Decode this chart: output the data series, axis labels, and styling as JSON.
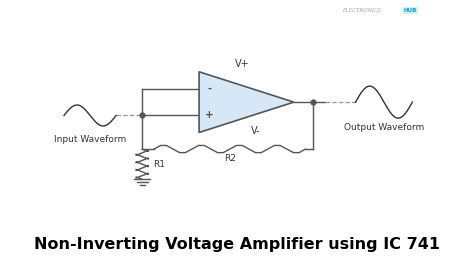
{
  "title": "Non-Inverting Voltage Amplifier using IC 741",
  "title_fontsize": 11.5,
  "bg_color": "#ffffff",
  "circuit_color": "#333333",
  "opamp_fill": "#d6e8f7",
  "opamp_edge": "#555555",
  "wire_color": "#555555",
  "resistor_color": "#555555",
  "waveform_color": "#333333",
  "dashed_color": "#999999",
  "label_fontsize": 6.5,
  "brand_color_e": "#aaaaaa",
  "brand_color_hub": "#00aacc",
  "input_label": "Input Waveform",
  "output_label": "Output Waveform",
  "r1_label": "R1",
  "r2_label": "R2",
  "vplus_label": "V+",
  "vminus_label": "V-",
  "plus_sign": "+",
  "minus_sign": "-",
  "xlim": [
    0,
    10
  ],
  "ylim": [
    0,
    10
  ],
  "figw": 4.74,
  "figh": 2.76,
  "dpi": 100
}
